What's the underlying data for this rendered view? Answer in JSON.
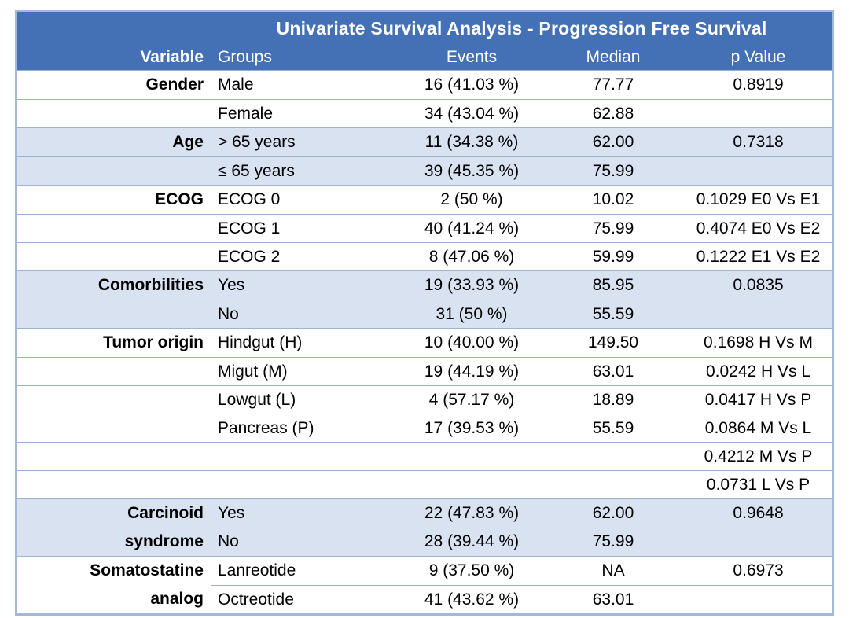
{
  "colors": {
    "header_blue": "#4471b5",
    "band_blue": "#d9e2f0",
    "border_blue": "#9cb3d8",
    "header_text": "#ffffff",
    "body_text": "#000000"
  },
  "table": {
    "title": "Univariate Survival Analysis - Progression Free Survival",
    "columns": [
      "Variable",
      "Groups",
      "Events",
      "Median",
      "p Value"
    ],
    "rows": [
      {
        "variable": "Gender",
        "group": "Male",
        "events": "16 (41.03 %)",
        "median": "77.77",
        "p_value": "0.8919",
        "band": false
      },
      {
        "variable": "",
        "group": "Female",
        "events": "34 (43.04 %)",
        "median": "62.88",
        "p_value": "",
        "band": false
      },
      {
        "variable": "Age",
        "group": "> 65 years",
        "events": "11 (34.38 %)",
        "median": "62.00",
        "p_value": "0.7318",
        "band": true
      },
      {
        "variable": "",
        "group": "≤ 65 years",
        "events": "39 (45.35 %)",
        "median": "75.99",
        "p_value": "",
        "band": true
      },
      {
        "variable": "ECOG",
        "group": "ECOG 0",
        "events": "2 (50 %)",
        "median": "10.02",
        "p_value": "0.1029 E0 Vs E1",
        "band": false
      },
      {
        "variable": "",
        "group": "ECOG 1",
        "events": "40 (41.24 %)",
        "median": "75.99",
        "p_value": "0.4074 E0 Vs E2",
        "band": false
      },
      {
        "variable": "",
        "group": "ECOG 2",
        "events": "8 (47.06 %)",
        "median": "59.99",
        "p_value": "0.1222 E1 Vs E2",
        "band": false
      },
      {
        "variable": "Comorbilities",
        "group": "Yes",
        "events": "19 (33.93 %)",
        "median": "85.95",
        "p_value": "0.0835",
        "band": true
      },
      {
        "variable": "",
        "group": "No",
        "events": "31 (50 %)",
        "median": "55.59",
        "p_value": "",
        "band": true
      },
      {
        "variable": "Tumor origin",
        "group": "Hindgut (H)",
        "events": "10 (40.00 %)",
        "median": "149.50",
        "p_value": "0.1698 H Vs M",
        "band": false
      },
      {
        "variable": "",
        "group": "Migut (M)",
        "events": "19 (44.19 %)",
        "median": "63.01",
        "p_value": "0.0242 H Vs L",
        "band": false
      },
      {
        "variable": "",
        "group": "Lowgut (L)",
        "events": "4 (57.17 %)",
        "median": "18.89",
        "p_value": "0.0417 H Vs P",
        "band": false
      },
      {
        "variable": "",
        "group": "Pancreas (P)",
        "events": "17 (39.53 %)",
        "median": "55.59",
        "p_value": "0.0864 M Vs L",
        "band": false
      },
      {
        "variable": "",
        "group": "",
        "events": "",
        "median": "",
        "p_value": "0.4212 M Vs P",
        "band": false
      },
      {
        "variable": "",
        "group": "",
        "events": "",
        "median": "",
        "p_value": "0.0731 L Vs P",
        "band": false
      },
      {
        "variable_lines": [
          "Carcinoid",
          "syndrome"
        ],
        "rowspan": 2,
        "group": "Yes",
        "events": "22 (47.83 %)",
        "median": "62.00",
        "p_value": "0.9648",
        "band": true
      },
      {
        "skip_variable": true,
        "group": "No",
        "events": "28 (39.44 %)",
        "median": "75.99",
        "p_value": "",
        "band": true
      },
      {
        "variable_lines": [
          "Somatostatine",
          "analog"
        ],
        "rowspan": 2,
        "group": "Lanreotide",
        "events": "9 (37.50 %)",
        "median": "NA",
        "p_value": "0.6973",
        "band": false
      },
      {
        "skip_variable": true,
        "group": "Octreotide",
        "events": "41 (43.62 %)",
        "median": "63.01",
        "p_value": "",
        "band": false
      }
    ]
  }
}
